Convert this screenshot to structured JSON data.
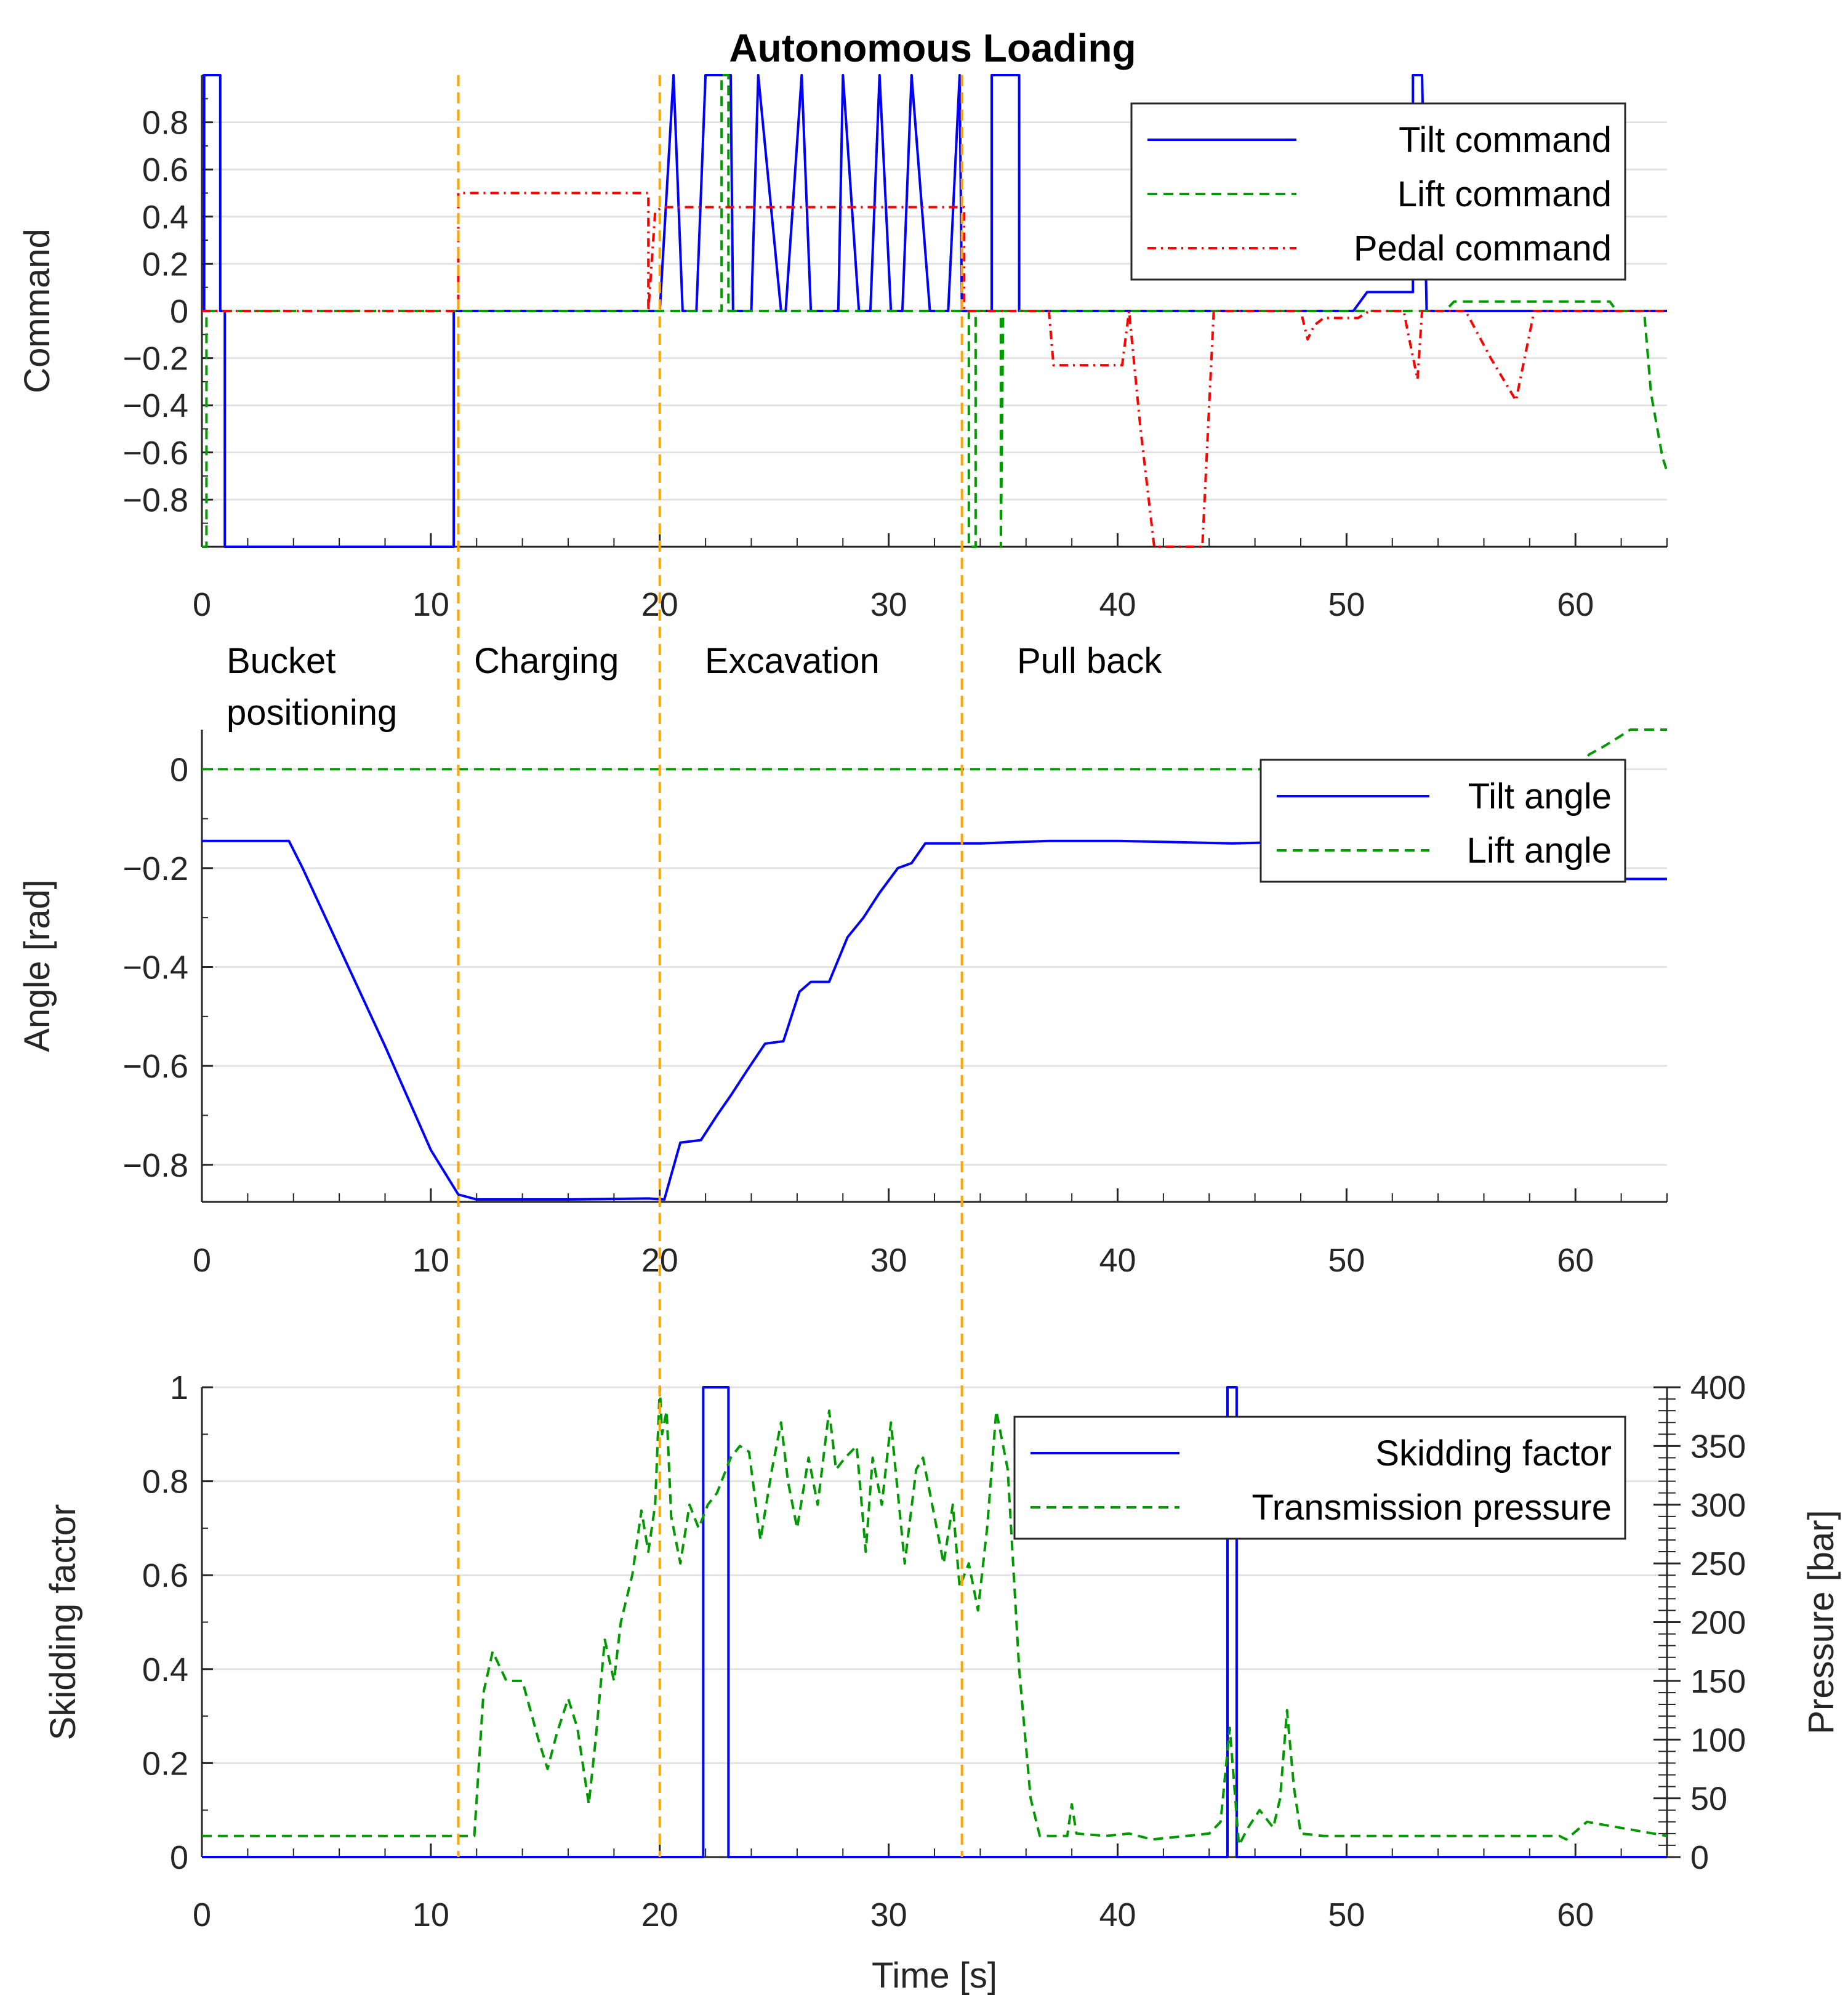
{
  "title": "Autonomous Loading",
  "colors": {
    "tilt": "#0000ff",
    "lift": "#009900",
    "pedal": "#ff0000",
    "phase_line": "#ffa500",
    "grid": "#e2e2e2",
    "axis": "#262626"
  },
  "phases": {
    "boundaries": [
      11.2,
      20.0,
      33.2
    ],
    "labels": [
      "Bucket\npositioning",
      "Charging",
      "Excavation",
      "Pull back"
    ]
  },
  "chart_data": [
    {
      "type": "line",
      "name": "commands",
      "title": "Autonomous Loading",
      "xlabel": "",
      "ylabel": "Command",
      "xlim": [
        0,
        64
      ],
      "ylim": [
        -1,
        1
      ],
      "xticks": [
        0,
        10,
        20,
        30,
        40,
        50,
        60
      ],
      "yticks": [
        0.8,
        0.6,
        0.4,
        0.2,
        0,
        -0.2,
        -0.4,
        -0.6,
        -0.8
      ],
      "ytick_labels": [
        "0.8",
        "0.6",
        "0.4",
        "0.2",
        "0",
        "−0.2",
        "−0.4",
        "−0.6",
        "−0.8"
      ],
      "legend": [
        "Tilt command",
        "Lift command",
        "Pedal command"
      ],
      "series": [
        {
          "name": "Tilt command",
          "style": "solid",
          "x": [
            0,
            0.1,
            0.1,
            0.8,
            0.8,
            1.0,
            1.0,
            11.0,
            11.0,
            20.0,
            20.6,
            21.0,
            21.6,
            22.0,
            23.1,
            23.2,
            24.0,
            24.3,
            25.3,
            25.5,
            26.2,
            26.6,
            27.8,
            28.0,
            28.7,
            29.2,
            29.6,
            30.1,
            30.6,
            31.0,
            31.8,
            32.6,
            33.1,
            33.2,
            34.5,
            34.5,
            35.7,
            35.7,
            50.3,
            50.9,
            52.9,
            52.9,
            53.3,
            53.5,
            64
          ],
          "y": [
            0,
            0,
            1,
            1,
            0,
            0,
            -1,
            -1,
            0,
            0,
            1,
            0,
            0,
            1,
            1,
            0,
            0,
            1,
            0,
            0,
            1,
            0,
            0,
            1,
            0,
            0,
            1,
            0,
            0,
            1,
            0,
            0,
            1,
            0,
            0,
            1,
            1,
            0,
            0,
            0.08,
            0.08,
            1,
            1,
            0,
            0
          ]
        },
        {
          "name": "Lift command",
          "style": "dashed",
          "x": [
            0,
            0.2,
            0.2,
            22.7,
            22.7,
            23.0,
            23.0,
            33.2,
            33.5,
            33.5,
            33.8,
            33.8,
            34.9,
            34.9,
            35.0,
            54.3,
            54.7,
            61.5,
            61.8,
            63.0,
            63.3,
            63.8,
            64
          ],
          "y": [
            -1,
            -1,
            0,
            0,
            1,
            1,
            0,
            0,
            0,
            -1,
            -1,
            0,
            0,
            -1,
            0,
            0,
            0.04,
            0.04,
            0,
            0,
            -0.35,
            -0.62,
            -0.68
          ]
        },
        {
          "name": "Pedal command",
          "style": "dashdot",
          "x": [
            0,
            11.2,
            11.2,
            19.5,
            19.5,
            19.8,
            20.1,
            33.3,
            33.3,
            37.0,
            37.2,
            40.2,
            40.5,
            41.0,
            41.6,
            43.7,
            44.2,
            48.0,
            48.3,
            48.6,
            49.0,
            50.5,
            51.0,
            52.5,
            52.7,
            53.1,
            53.3,
            55.2,
            56.3,
            57.4,
            58.2,
            64
          ],
          "y": [
            0,
            0,
            0.5,
            0.5,
            0,
            0.42,
            0.44,
            0.44,
            0,
            0,
            -0.23,
            -0.23,
            0,
            -0.5,
            -1,
            -1,
            0,
            0,
            -0.12,
            -0.06,
            -0.03,
            -0.03,
            0,
            0,
            -0.1,
            -0.29,
            0,
            0,
            -0.2,
            -0.38,
            0,
            0
          ]
        }
      ]
    },
    {
      "type": "line",
      "name": "angles",
      "xlabel": "",
      "ylabel": "Angle [rad]",
      "xlim": [
        0,
        64
      ],
      "ylim": [
        -0.875,
        0.08
      ],
      "xticks": [
        0,
        10,
        20,
        30,
        40,
        50,
        60
      ],
      "yticks": [
        0,
        -0.2,
        -0.4,
        -0.6,
        -0.8
      ],
      "ytick_labels": [
        "0",
        "−0.2",
        "−0.4",
        "−0.6",
        "−0.8"
      ],
      "legend": [
        "Tilt angle",
        "Lift angle"
      ],
      "series": [
        {
          "name": "Tilt angle",
          "style": "solid",
          "x": [
            0,
            3.8,
            4.4,
            6.0,
            8.0,
            10.0,
            11.2,
            12.0,
            16.0,
            19.5,
            20.2,
            20.9,
            21.8,
            22.5,
            23.1,
            23.8,
            24.6,
            25.4,
            26.1,
            26.6,
            27.4,
            28.2,
            28.9,
            29.6,
            30.4,
            31.0,
            31.6,
            32.5,
            34,
            37,
            40,
            45,
            50,
            60,
            61.2,
            64
          ],
          "y": [
            -0.145,
            -0.145,
            -0.2,
            -0.36,
            -0.56,
            -0.77,
            -0.86,
            -0.87,
            -0.87,
            -0.868,
            -0.87,
            -0.755,
            -0.75,
            -0.7,
            -0.66,
            -0.61,
            -0.555,
            -0.55,
            -0.45,
            -0.43,
            -0.43,
            -0.34,
            -0.3,
            -0.25,
            -0.2,
            -0.19,
            -0.15,
            -0.15,
            -0.15,
            -0.145,
            -0.145,
            -0.15,
            -0.145,
            -0.145,
            -0.222,
            -0.222
          ]
        },
        {
          "name": "Lift angle",
          "style": "dashed",
          "x": [
            0,
            60.1,
            60.6,
            61.2,
            61.9,
            62.4,
            64
          ],
          "y": [
            0,
            0,
            0.03,
            0.045,
            0.065,
            0.08,
            0.08
          ]
        }
      ]
    },
    {
      "type": "line",
      "name": "skidding",
      "xlabel": "Time [s]",
      "ylabel": "Skidding factor",
      "ylabel_right": "Pressure [bar]",
      "xlim": [
        0,
        64
      ],
      "ylim": [
        0,
        1
      ],
      "ylim_right": [
        0,
        400
      ],
      "xticks": [
        0,
        10,
        20,
        30,
        40,
        50,
        60
      ],
      "yticks": [
        1,
        0.8,
        0.6,
        0.4,
        0.2,
        0
      ],
      "ytick_labels": [
        "1",
        "0.8",
        "0.6",
        "0.4",
        "0.2",
        "0"
      ],
      "yticks_right": [
        400,
        350,
        300,
        250,
        200,
        150,
        100,
        50,
        0
      ],
      "ytick_labels_right": [
        "400",
        "350",
        "300",
        "250",
        "200",
        "150",
        "100",
        "50",
        "0"
      ],
      "legend": [
        "Skidding factor",
        "Transmission pressure"
      ],
      "series": [
        {
          "name": "Skidding factor",
          "style": "solid",
          "axis": "left",
          "x": [
            0,
            21.9,
            21.9,
            23.0,
            23.0,
            44.8,
            44.8,
            45.2,
            45.2,
            64
          ],
          "y": [
            0,
            0,
            1,
            1,
            0,
            0,
            1,
            1,
            0,
            0
          ]
        },
        {
          "name": "Transmission pressure",
          "style": "dashed",
          "axis": "right",
          "x": [
            0,
            11.2,
            11.9,
            12.3,
            12.7,
            13.3,
            14.0,
            14.7,
            15.1,
            15.5,
            16.0,
            16.4,
            16.9,
            17.2,
            17.6,
            18.0,
            18.3,
            18.8,
            19.2,
            19.5,
            19.8,
            20.0,
            20.1,
            20.3,
            20.5,
            20.9,
            21.3,
            21.7,
            22.1,
            22.5,
            23.1,
            23.5,
            23.9,
            24.4,
            24.9,
            25.3,
            25.6,
            26.0,
            26.5,
            26.9,
            27.4,
            27.7,
            28.1,
            28.6,
            29.0,
            29.3,
            29.7,
            30.1,
            30.7,
            31.2,
            31.5,
            31.9,
            32.4,
            32.8,
            33.1,
            33.5,
            33.9,
            34.3,
            34.7,
            35.2,
            35.7,
            36.2,
            36.6,
            37.0,
            37.8,
            38.0,
            38.2,
            39.5,
            40.5,
            41.5,
            43.0,
            44.0,
            44.5,
            44.9,
            45.3,
            45.7,
            46.2,
            46.8,
            47.1,
            47.4,
            47.7,
            48.0,
            49,
            52,
            56,
            58,
            59.3,
            59.6,
            60.5,
            64
          ],
          "y": [
            18,
            18,
            18,
            140,
            175,
            150,
            150,
            100,
            75,
            105,
            135,
            110,
            45,
            100,
            185,
            150,
            200,
            240,
            295,
            260,
            300,
            400,
            360,
            380,
            290,
            250,
            300,
            280,
            300,
            310,
            340,
            350,
            345,
            270,
            330,
            370,
            320,
            280,
            340,
            300,
            380,
            330,
            340,
            350,
            260,
            340,
            300,
            370,
            250,
            330,
            340,
            300,
            250,
            300,
            230,
            250,
            210,
            280,
            380,
            330,
            160,
            50,
            18,
            18,
            18,
            45,
            20,
            18,
            20,
            15,
            18,
            20,
            30,
            110,
            10,
            25,
            40,
            25,
            50,
            125,
            60,
            20,
            18,
            18,
            18,
            18,
            18,
            15,
            30,
            18
          ]
        }
      ]
    }
  ]
}
